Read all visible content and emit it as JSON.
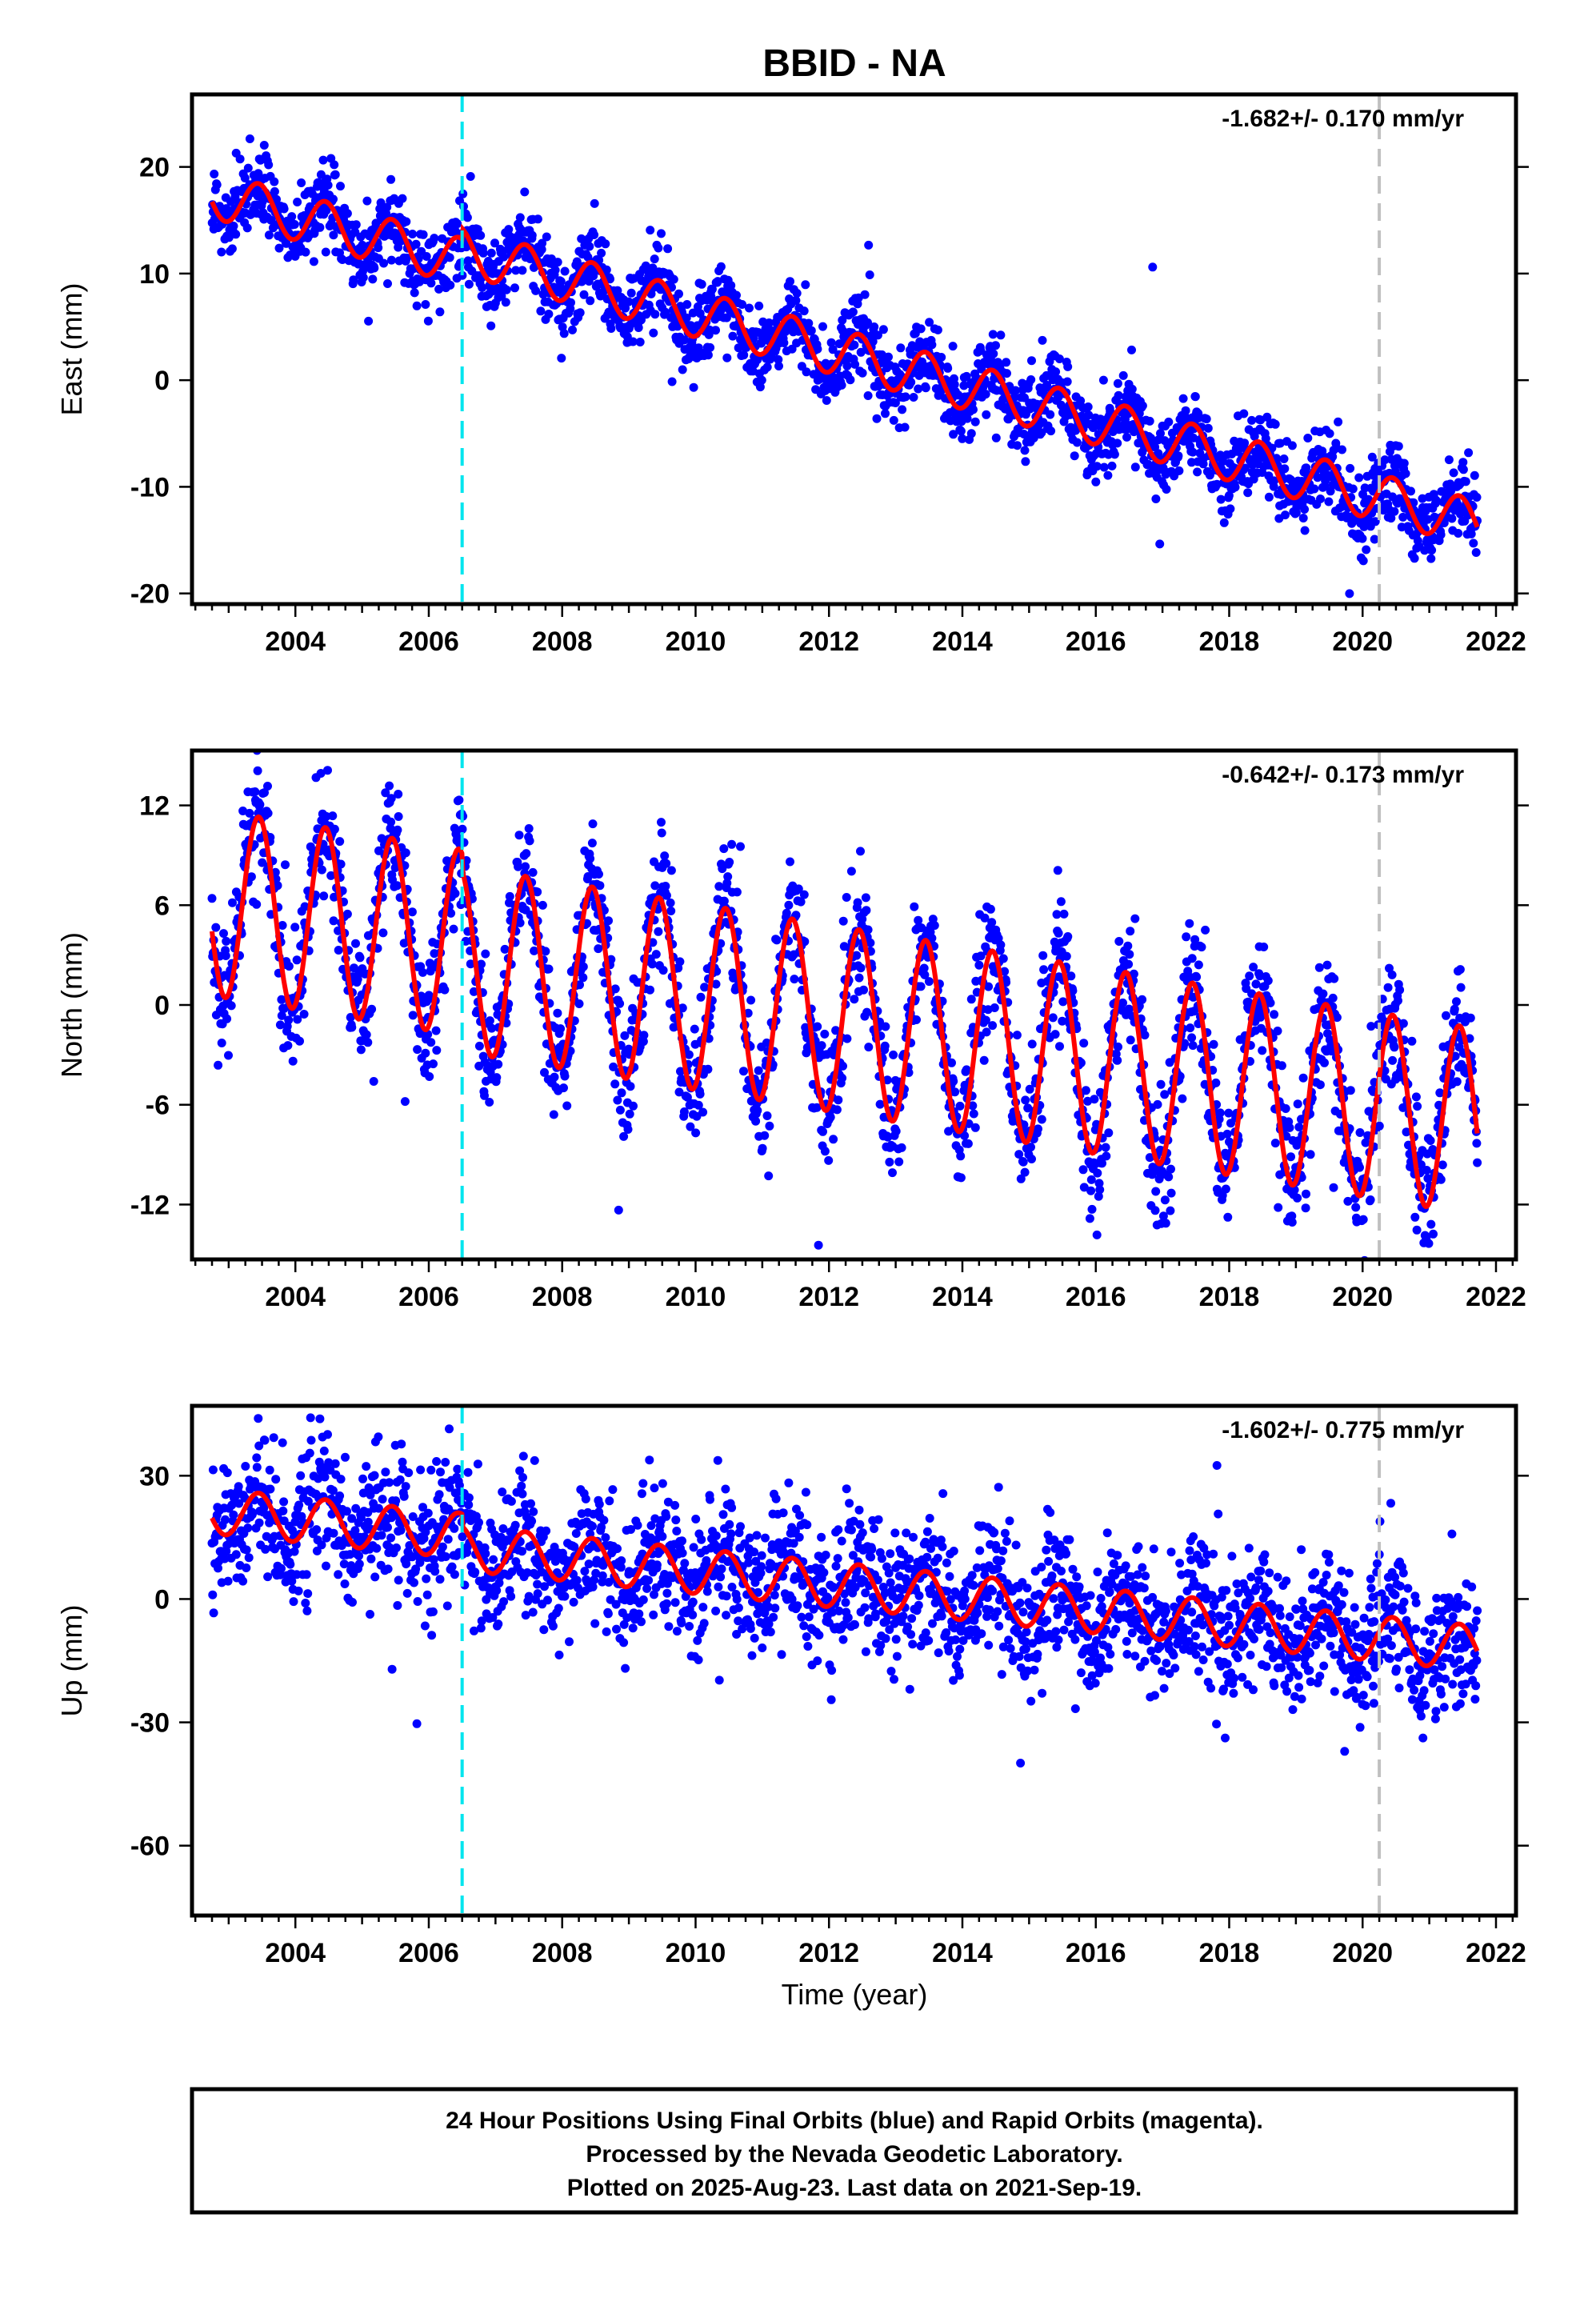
{
  "title": "BBID - NA",
  "colors": {
    "points": "#0000ff",
    "model": "#ff0000",
    "antenna_change": "#00e5ee",
    "end_marker": "#c0c0c0"
  },
  "x_axis_label": "Time (year)",
  "x_ticks": [
    "2004",
    "2006",
    "2008",
    "2010",
    "2012",
    "2014",
    "2016",
    "2018",
    "2020",
    "2022"
  ],
  "footer": {
    "lines": [
      "24 Hour Positions Using Final Orbits (blue) and Rapid Orbits (magenta).",
      "Processed by the Nevada Geodetic Laboratory.",
      "Plotted on 2025-Aug-23. Last data on 2021-Sep-19."
    ]
  },
  "chart_data": [
    {
      "type": "scatter",
      "ylabel": "East (mm)",
      "rate_label": "-1.682+/- 0.170 mm/yr",
      "xlim": [
        2002.45,
        2022.3
      ],
      "ylim": [
        -21.0,
        26.8
      ],
      "yticks": [
        "20",
        "10",
        "0",
        "-10",
        "-20"
      ],
      "ytick_values": [
        20,
        10,
        0,
        -10,
        -20
      ],
      "data_start": 2002.75,
      "data_end": 2021.72,
      "vertical_markers": [
        {
          "x": 2006.5,
          "style": "dashed-cyan"
        },
        {
          "x": 2020.25,
          "style": "dashed-gray"
        }
      ],
      "model": {
        "intercept_at_2003": 17.0,
        "rate_mm_yr": -1.682,
        "seasonal_amplitude": 2.2,
        "offset_at_2006_5": 1.0
      },
      "scatter_sigma": 1.8
    },
    {
      "type": "scatter",
      "ylabel": "North (mm)",
      "rate_label": "-0.642+/- 0.173 mm/yr",
      "xlim": [
        2002.45,
        2022.3
      ],
      "ylim": [
        -15.3,
        15.3
      ],
      "yticks": [
        "12",
        "6",
        "0",
        "-6",
        "-12"
      ],
      "ytick_values": [
        12,
        6,
        0,
        -6,
        -12
      ],
      "data_start": 2002.75,
      "data_end": 2021.72,
      "vertical_markers": [
        {
          "x": 2006.5,
          "style": "dashed-cyan"
        },
        {
          "x": 2020.25,
          "style": "dashed-gray"
        }
      ],
      "model": {
        "intercept_at_2003": 6.0,
        "rate_mm_yr": -0.642,
        "seasonal_amplitude": 5.6,
        "offset_at_2006_5": -1.0
      },
      "scatter_sigma": 1.9
    },
    {
      "type": "scatter",
      "ylabel": "Up (mm)",
      "rate_label": "-1.602+/- 0.775 mm/yr",
      "xlim": [
        2002.45,
        2022.3
      ],
      "ylim": [
        -77.0,
        47.0
      ],
      "yticks": [
        "30",
        "0",
        "-30",
        "-60"
      ],
      "ytick_values": [
        30,
        0,
        -30,
        -60
      ],
      "data_start": 2002.75,
      "data_end": 2021.72,
      "vertical_markers": [
        {
          "x": 2006.5,
          "style": "dashed-cyan"
        },
        {
          "x": 2020.25,
          "style": "dashed-gray"
        }
      ],
      "model": {
        "intercept_at_2003": 21.0,
        "rate_mm_yr": -1.602,
        "seasonal_amplitude": 5.5,
        "offset_at_2006_5": -3.0
      },
      "scatter_sigma": 8.0
    }
  ]
}
